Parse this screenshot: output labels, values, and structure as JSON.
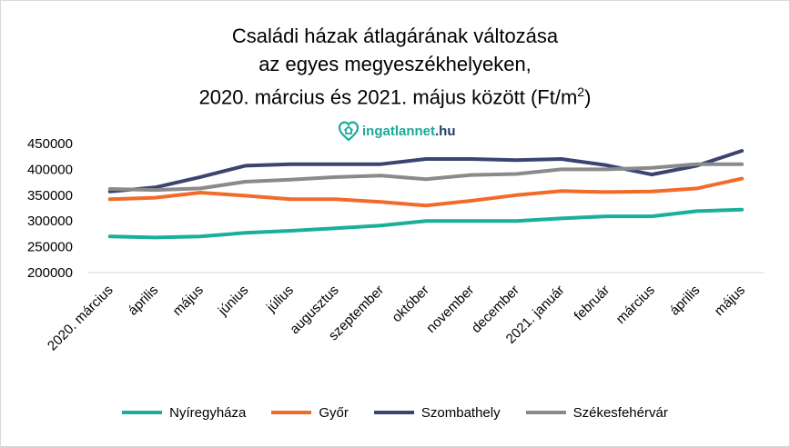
{
  "title": {
    "line1": "Családi házak átlagárának változása",
    "line2": "az egyes megyeszékhelyeken,",
    "line3_prefix": "2020. március és 2021. május között (Ft/m",
    "line3_sup": "2",
    "line3_suffix": ")"
  },
  "logo": {
    "name": "ingatlannet",
    "tld": ".hu",
    "icon": "house-heart-icon",
    "color": "#1aa99a",
    "tld_color": "#1d3d6e"
  },
  "chart_data": {
    "type": "line",
    "categories": [
      "2020. március",
      "április",
      "május",
      "június",
      "július",
      "augusztus",
      "szeptember",
      "október",
      "november",
      "december",
      "2021. január",
      "február",
      "március",
      "április",
      "május"
    ],
    "ylim": [
      200000,
      450000
    ],
    "yticks": [
      "200000",
      "250000",
      "300000",
      "350000",
      "400000",
      "450000"
    ],
    "grid": false,
    "legend_position": "bottom",
    "series": [
      {
        "name": "Nyíregyháza",
        "color": "#1aaf9a",
        "values": [
          270000,
          268000,
          270000,
          277000,
          281000,
          286000,
          291000,
          300000,
          300000,
          300000,
          305000,
          309000,
          309000,
          319000,
          322000
        ]
      },
      {
        "name": "Győr",
        "color": "#f26b2a",
        "values": [
          342000,
          345000,
          355000,
          349000,
          342000,
          342000,
          337000,
          330000,
          339000,
          350000,
          358000,
          356000,
          357000,
          363000,
          382000
        ]
      },
      {
        "name": "Szombathely",
        "color": "#3b4470",
        "values": [
          357000,
          365000,
          385000,
          407000,
          410000,
          410000,
          410000,
          420000,
          420000,
          418000,
          420000,
          408000,
          390000,
          407000,
          436000
        ]
      },
      {
        "name": "Székesfehérvár",
        "color": "#8a8a8a",
        "values": [
          362000,
          360000,
          363000,
          376000,
          380000,
          385000,
          388000,
          381000,
          389000,
          391000,
          400000,
          400000,
          403000,
          410000,
          410000
        ]
      }
    ]
  }
}
